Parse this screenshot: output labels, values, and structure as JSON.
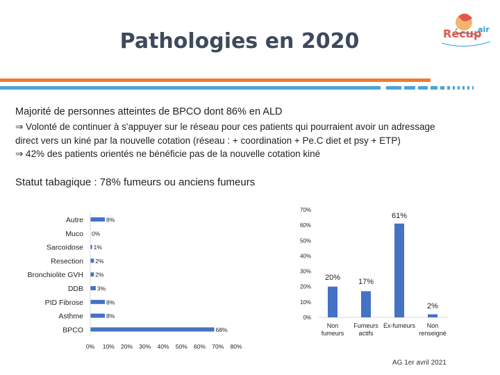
{
  "title": "Pathologies en 2020",
  "logo": {
    "text": "Récup'air",
    "icon": "recup-air-logo"
  },
  "text": {
    "line1": "Majorité de personnes atteintes de BPCO dont 86% en ALD",
    "line2": "⇒ Volonté de continuer à s'appuyer sur le réseau pour ces patients qui pourraient avoir un adressage",
    "line3": "direct vers un kiné  par la nouvelle cotation (réseau : + coordination + Pe.C diet et psy + ETP)",
    "line4": "⇒  42% des patients orientés ne bénéficie pas de la nouvelle cotation kiné",
    "line5": "Statut tabagique : 78% fumeurs ou anciens fumeurs"
  },
  "colors": {
    "bar": "#4472c4",
    "orange": "#ed7d31",
    "blue": "#4ba5d6",
    "title": "#3d4a5c"
  },
  "chart_data": [
    {
      "type": "bar",
      "orientation": "horizontal",
      "categories": [
        "Autre",
        "Muco",
        "Sarcoïdose",
        "Resection",
        "Bronchiolite GVH",
        "DDB",
        "PID Fibrose",
        "Asthme",
        "BPCO"
      ],
      "values": [
        8,
        0,
        1,
        2,
        2,
        3,
        8,
        8,
        68
      ],
      "data_labels": [
        "8%",
        "0%",
        "1%",
        "2%",
        "2%",
        "3%",
        "8%",
        "8%",
        "68%"
      ],
      "xticks": [
        "0%",
        "10%",
        "20%",
        "30%",
        "40%",
        "50%",
        "60%",
        "70%",
        "80%"
      ],
      "xlim": [
        0,
        80
      ]
    },
    {
      "type": "bar",
      "categories": [
        "Non\nfumeurs",
        "Fumeurs\nactifs",
        "Ex-fumeurs",
        "Non\nrenseigné"
      ],
      "values": [
        20,
        17,
        61,
        2
      ],
      "data_labels": [
        "20%",
        "17%",
        "61%",
        "2%"
      ],
      "yticks": [
        "0%",
        "10%",
        "20%",
        "30%",
        "40%",
        "50%",
        "60%",
        "70%"
      ],
      "ylim": [
        0,
        70
      ]
    }
  ],
  "footer": "AG 1er avril 2021"
}
